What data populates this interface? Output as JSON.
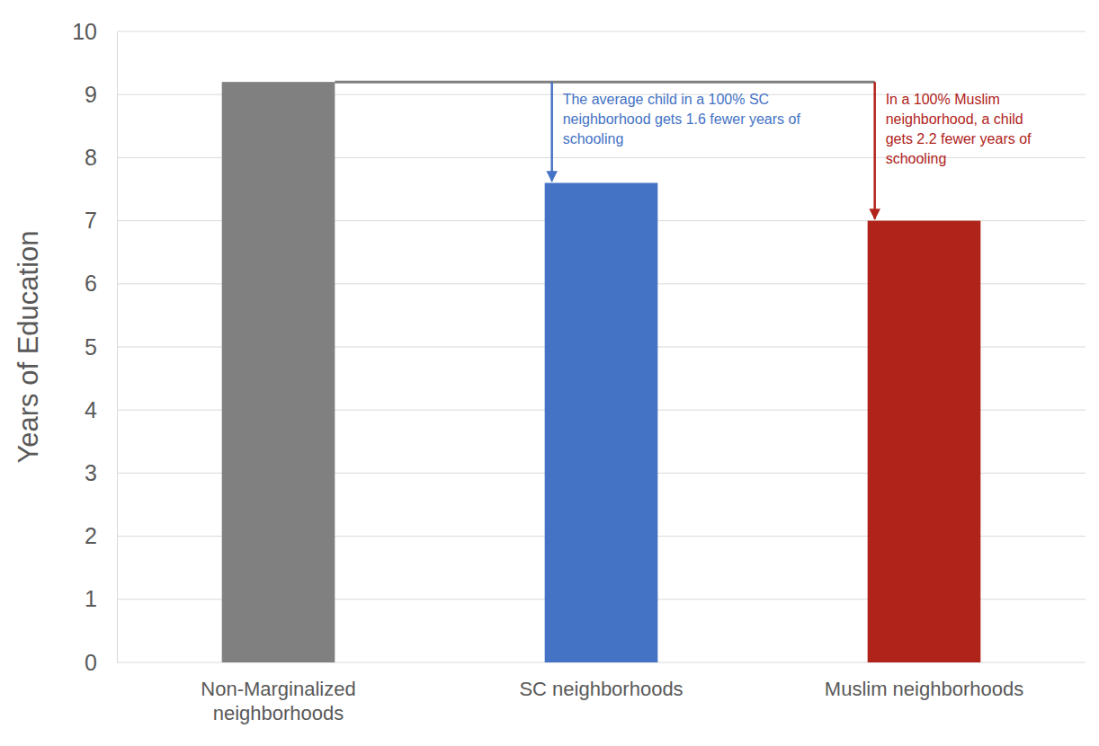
{
  "chart_data": {
    "type": "bar",
    "y_label": "Years of Education",
    "categories": [
      "Non-Marginalized neighborhoods",
      "SC neighborhoods",
      "Muslim neighborhoods"
    ],
    "values": [
      9.2,
      7.6,
      7.0
    ],
    "colors": [
      "#808080",
      "#4472c4",
      "#b0231b"
    ],
    "ylim": [
      0,
      10
    ],
    "yticks": [
      0,
      1,
      2,
      3,
      4,
      5,
      6,
      7,
      8,
      9,
      10
    ],
    "grid": true,
    "annotations": [
      "The average child in a 100% SC neighborhood gets 1.6 fewer years of schooling",
      "In a 100% Muslim neighborhood, a child gets 2.2 fewer years of schooling"
    ]
  }
}
